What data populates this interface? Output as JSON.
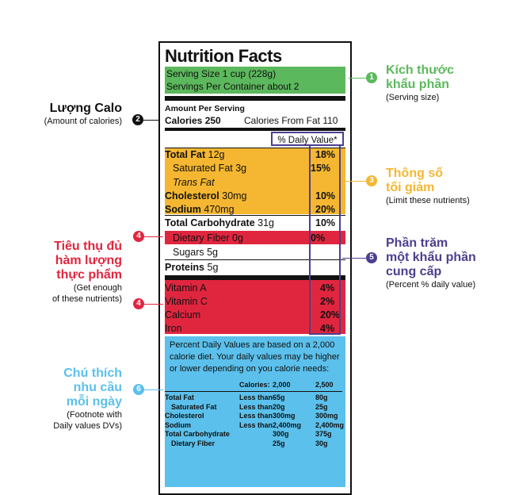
{
  "label": {
    "title": "Nutrition Facts",
    "serving_size": "Serving Size 1 cup (228g)",
    "servings_per_container": "Servings Per Container about 2",
    "amount_per_serving": "Amount Per Serving",
    "calories": "Calories 250",
    "calories_from_fat": "Calories From Fat 110",
    "daily_value_header": "% Daily Value*",
    "limit_rows": [
      {
        "name": "Total Fat",
        "amount": " 12g",
        "pct": "18%"
      },
      {
        "name": "Saturated Fat 3g",
        "amount": "",
        "pct": "15%"
      },
      {
        "name": "Trans Fat",
        "amount": "",
        "pct": ""
      },
      {
        "name": "Cholesterol",
        "amount": " 30mg",
        "pct": "10%"
      },
      {
        "name": "Sodium",
        "amount": " 470mg",
        "pct": "20%"
      }
    ],
    "carb_row": {
      "name": "Total Carbohydrate",
      "amount": " 31g",
      "pct": "10%"
    },
    "fiber_row": {
      "name": "Dietary Fiber 0g",
      "pct": "0%"
    },
    "sugars_row": {
      "name": "Sugars 5g"
    },
    "protein_row": {
      "name": "Proteins",
      "amount": " 5g"
    },
    "vitamin_rows": [
      {
        "name": "Vitamin A",
        "pct": "4%"
      },
      {
        "name": "Vitamin C",
        "pct": "2%"
      },
      {
        "name": "Calcium",
        "pct": "20%"
      },
      {
        "name": "Iron",
        "pct": "4%"
      }
    ],
    "footnote_text": "Percent Daily Values are based on a 2,000 calorie diet. Your daily values may be higher or lower depending on you calorie needs:",
    "footnote_table": {
      "header": [
        "Calories:",
        "2,000",
        "2,500"
      ],
      "rows": [
        {
          "name": "Total Fat",
          "cond": "Less than",
          "v1": "65g",
          "v2": "80g"
        },
        {
          "name": "Saturated Fat",
          "cond": "Less than",
          "v1": "20g",
          "v2": "25g"
        },
        {
          "name": "Cholesterol",
          "cond": "Less than",
          "v1": "300mg",
          "v2": "300mg"
        },
        {
          "name": "Sodium",
          "cond": "Less than",
          "v1": "2,400mg",
          "v2": "2,400mg"
        },
        {
          "name": "Total Carbohydrate",
          "cond": "",
          "v1": "300g",
          "v2": "375g"
        },
        {
          "name": "Dietary Fiber",
          "cond": "",
          "v1": "25g",
          "v2": "30g"
        }
      ]
    }
  },
  "annotations": {
    "serving": {
      "number": "1",
      "title_line1": "Kích thước",
      "title_line2": "khẩu phần",
      "subtitle": "(Serving size)"
    },
    "calories": {
      "number": "2",
      "title": "Lượng Calo",
      "subtitle": "(Amount of calories)"
    },
    "limit": {
      "number": "3",
      "title_line1": "Thông số",
      "title_line2": "tối giảm",
      "subtitle": "(Limit these nutrients)"
    },
    "enough": {
      "number": "4",
      "title_line1": "Tiêu thụ đủ",
      "title_line2": "hàm lượng",
      "title_line3": "thực phẩm",
      "subtitle_line1": "(Get enough",
      "subtitle_line2": "of these nutrients)"
    },
    "percent": {
      "number": "5",
      "title_line1": "Phần trăm",
      "title_line2": "một khẩu phần",
      "title_line3": "cung cấp",
      "subtitle": "(Percent % daily value)"
    },
    "footnote": {
      "number": "6",
      "title_line1": "Chú thích",
      "title_line2": "nhu cầu",
      "title_line3": "mỗi ngày",
      "subtitle_line1": "(Footnote with",
      "subtitle_line2": "Daily values DVs)"
    }
  },
  "colors": {
    "green": "#5cb85c",
    "yellow": "#f5b731",
    "red": "#e0263f",
    "blue": "#5bc0eb",
    "purple": "#4b3f8f",
    "black": "#111111"
  }
}
